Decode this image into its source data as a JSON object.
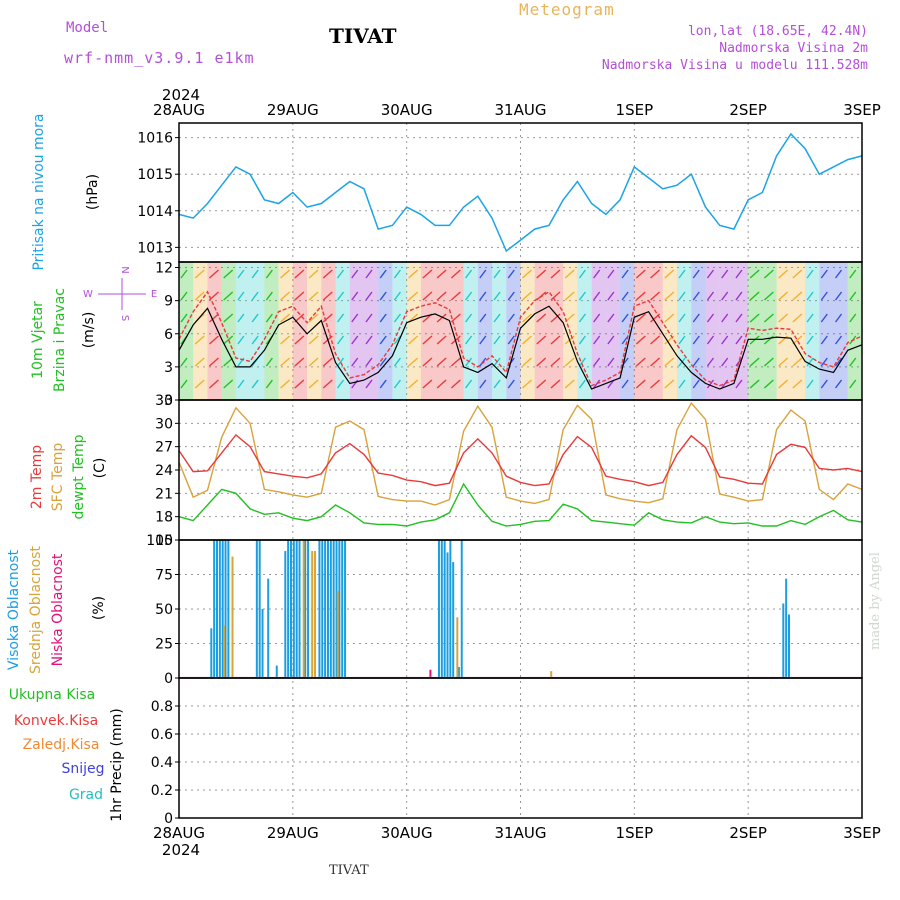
{
  "header": {
    "model_label": "Model",
    "model_name": "wrf-nmm_v3.9.1 e1km",
    "station": "TIVAT",
    "chart_title": "Meteogram",
    "coords": "lon,lat (18.65E, 42.4N)",
    "elevation": "Nadmorska Visina 2m",
    "model_elevation": "Nadmorska Visina u modelu 111.528m",
    "footer_station": "TIVAT",
    "credit": "made by Angel"
  },
  "colors": {
    "pressure": "#1ba3e6",
    "temp2m": "#e83a3a",
    "sfc": "#d9a23a",
    "dewpt": "#22c022",
    "cloud_high": "#1a9ee0",
    "cloud_mid": "#d7a43a",
    "cloud_low": "#e0127a",
    "wind_speed": "#000000",
    "wind_gust": "#e83a3a",
    "wind_label": "#22c022",
    "magenta": "#b34fd8",
    "orange": "#f08a32",
    "snow": "#4040e0",
    "graupel": "#20c0c0"
  },
  "chart_data": [
    {
      "type": "line",
      "panel": "pressure",
      "ylabel": "Pritisak na nivou mora",
      "unit": "(hPa)",
      "x_start": "2024-08-28 00:00",
      "x_step_hours": 3,
      "ylim": [
        1012.6,
        1016.4
      ],
      "yticks": [
        1013,
        1014,
        1015,
        1016
      ],
      "series": [
        {
          "values": [
            1013.9,
            1013.8,
            1014.2,
            1014.7,
            1015.2,
            1015.0,
            1014.3,
            1014.2,
            1014.5,
            1014.1,
            1014.2,
            1014.5,
            1014.8,
            1014.6,
            1013.5,
            1013.6,
            1014.1,
            1013.9,
            1013.6,
            1013.6,
            1014.1,
            1014.4,
            1013.8,
            1012.9,
            1013.2,
            1013.5,
            1013.6,
            1014.3,
            1014.8,
            1014.2,
            1013.9,
            1014.3,
            1015.2,
            1014.9,
            1014.6,
            1014.7,
            1015.0,
            1014.1,
            1013.6,
            1013.5,
            1014.3,
            1014.5,
            1015.5,
            1016.1,
            1015.7,
            1015.0,
            1015.2,
            1015.4,
            1015.5
          ]
        }
      ]
    },
    {
      "type": "line",
      "panel": "wind",
      "ylabel": "10m Vjetar",
      "ylabel2": "Brzina i Pravac",
      "unit": "(m/s)",
      "compass": {
        "n": "N",
        "s": "S",
        "w": "W",
        "e": "E"
      },
      "ylim": [
        0,
        12.5
      ],
      "yticks": [
        0,
        3,
        6,
        9,
        12
      ],
      "series": [
        {
          "name": "speed",
          "values": [
            4.5,
            6.8,
            8.3,
            5.5,
            3.0,
            3.0,
            4.5,
            6.8,
            7.5,
            6.0,
            7.2,
            3.4,
            1.5,
            1.8,
            2.5,
            4.0,
            7.0,
            7.5,
            7.8,
            7.2,
            3.0,
            2.5,
            3.3,
            2.0,
            6.5,
            7.8,
            8.5,
            7.0,
            3.5,
            1.0,
            1.5,
            2.0,
            7.5,
            8.0,
            6.0,
            4.0,
            2.5,
            1.5,
            1.0,
            1.5,
            5.5,
            5.5,
            5.7,
            5.6,
            3.5,
            2.8,
            2.5,
            4.5,
            5.0
          ]
        },
        {
          "name": "gust",
          "values": [
            5.5,
            8.0,
            9.8,
            7.0,
            3.8,
            3.5,
            5.5,
            8.0,
            8.5,
            7.0,
            8.5,
            4.2,
            2.0,
            2.3,
            3.2,
            5.0,
            8.0,
            8.5,
            8.8,
            8.2,
            3.8,
            3.0,
            4.0,
            2.5,
            7.5,
            9.0,
            9.8,
            8.0,
            4.2,
            1.3,
            1.8,
            2.5,
            8.5,
            9.0,
            7.0,
            5.0,
            3.2,
            1.8,
            1.3,
            1.8,
            6.5,
            6.3,
            6.5,
            6.4,
            4.2,
            3.4,
            3.0,
            5.2,
            5.8
          ]
        }
      ]
    },
    {
      "type": "line",
      "panel": "temperature",
      "ylabel": "2m Temp",
      "ylabel2": "SFC Temp",
      "ylabel3": "dewpt Temp",
      "unit": "(C)",
      "ylim": [
        15,
        33
      ],
      "yticks": [
        15,
        18,
        21,
        24,
        27,
        30,
        33
      ],
      "series": [
        {
          "name": "2m",
          "values": [
            26.5,
            23.8,
            23.9,
            26.2,
            28.5,
            27.0,
            23.8,
            23.5,
            23.2,
            23.0,
            23.5,
            26.2,
            27.4,
            26.0,
            23.6,
            23.3,
            22.7,
            22.5,
            22.0,
            22.3,
            26.2,
            28.0,
            26.2,
            23.2,
            22.4,
            22.0,
            22.2,
            26.0,
            28.3,
            26.9,
            23.2,
            22.8,
            22.5,
            22.0,
            22.4,
            26.0,
            28.4,
            26.9,
            23.1,
            22.8,
            22.3,
            22.2,
            26.0,
            27.3,
            26.9,
            24.2,
            24.0,
            24.2,
            23.8
          ]
        },
        {
          "name": "sfc",
          "values": [
            25.0,
            20.5,
            21.4,
            28.2,
            32.0,
            30.0,
            21.5,
            21.2,
            20.8,
            20.5,
            21.0,
            29.5,
            30.3,
            29.2,
            20.6,
            20.2,
            20.0,
            20.0,
            19.5,
            20.2,
            29.0,
            32.2,
            29.5,
            20.5,
            20.0,
            19.7,
            20.2,
            29.2,
            32.3,
            30.5,
            20.8,
            20.3,
            20.0,
            19.8,
            20.3,
            29.2,
            32.6,
            30.5,
            20.9,
            20.5,
            20.0,
            20.2,
            29.2,
            31.7,
            30.3,
            21.5,
            20.2,
            22.2,
            21.5
          ]
        },
        {
          "name": "dewpt",
          "values": [
            18.0,
            17.5,
            19.5,
            21.5,
            21.0,
            19.0,
            18.3,
            18.5,
            17.8,
            17.5,
            18.0,
            19.5,
            18.5,
            17.2,
            17.0,
            17.0,
            16.8,
            17.3,
            17.6,
            18.5,
            22.2,
            19.5,
            17.4,
            16.8,
            17.0,
            17.4,
            17.5,
            19.6,
            19.0,
            17.5,
            17.3,
            17.1,
            16.9,
            18.5,
            17.6,
            17.3,
            17.2,
            18.0,
            17.3,
            17.1,
            17.2,
            16.8,
            16.8,
            17.5,
            17.0,
            18.0,
            18.8,
            17.6,
            17.3
          ]
        }
      ]
    },
    {
      "type": "bar",
      "panel": "cloud",
      "ylabel": "Visoka Oblacnost",
      "ylabel2": "Srednja Oblacnost",
      "ylabel3": "Niska Oblacnost",
      "unit": "(%)",
      "ylim": [
        0,
        100
      ],
      "yticks": [
        0,
        25,
        50,
        75,
        100
      ],
      "series": [
        {
          "name": "high",
          "points": [
            [
              11,
              36
            ],
            [
              12,
              100
            ],
            [
              13,
              100
            ],
            [
              14,
              100
            ],
            [
              15,
              100
            ],
            [
              16,
              100
            ],
            [
              17,
              100
            ],
            [
              27,
              100
            ],
            [
              28,
              100
            ],
            [
              29,
              50
            ],
            [
              31,
              72
            ],
            [
              34,
              9
            ],
            [
              37,
              92
            ],
            [
              38,
              100
            ],
            [
              39,
              100
            ],
            [
              40,
              100
            ],
            [
              41,
              100
            ],
            [
              42,
              100
            ],
            [
              44,
              100
            ],
            [
              45,
              100
            ],
            [
              49,
              100
            ],
            [
              50,
              100
            ],
            [
              51,
              100
            ],
            [
              52,
              100
            ],
            [
              53,
              100
            ],
            [
              54,
              100
            ],
            [
              55,
              100
            ],
            [
              56,
              100
            ],
            [
              57,
              100
            ],
            [
              58,
              100
            ],
            [
              91,
              100
            ],
            [
              92,
              100
            ],
            [
              93,
              100
            ],
            [
              94,
              91
            ],
            [
              95,
              100
            ],
            [
              96,
              84
            ],
            [
              98,
              8
            ],
            [
              99,
              100
            ],
            [
              212,
              54
            ],
            [
              213,
              72
            ],
            [
              214,
              46
            ]
          ]
        },
        {
          "name": "mid",
          "points": [
            [
              15,
              38
            ],
            [
              18,
              88
            ],
            [
              43,
              100
            ],
            [
              46,
              92
            ],
            [
              47,
              92
            ],
            [
              55,
              63
            ],
            [
              97,
              44
            ],
            [
              130,
              5
            ]
          ]
        },
        {
          "name": "low",
          "points": [
            [
              88,
              6
            ]
          ]
        }
      ]
    },
    {
      "type": "line",
      "panel": "precip",
      "ylabel": "1hr Precip",
      "unit": "(mm)",
      "ylim": [
        0,
        1.0
      ],
      "yticks": [
        0,
        0.2,
        0.4,
        0.6,
        0.8
      ],
      "legend": [
        "Ukupna Kisa",
        "Konvek.Kisa",
        "Zaledj.Kisa",
        "Snijeg",
        "Grad"
      ],
      "series": []
    }
  ],
  "time_axis": {
    "ticks": [
      "28AUG",
      "29AUG",
      "30AUG",
      "31AUG",
      "1SEP",
      "2SEP",
      "3SEP"
    ],
    "year": "2024"
  }
}
